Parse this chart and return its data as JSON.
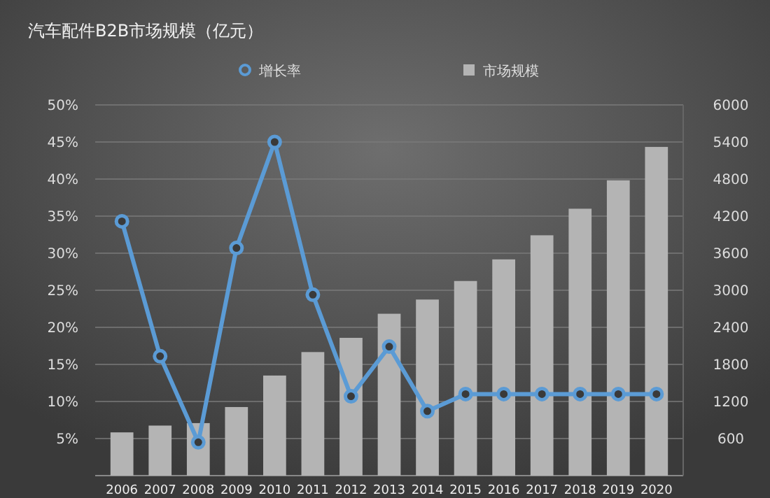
{
  "chart_data": {
    "type": "bar",
    "title": "汽车配件B2B市场规模（亿元）",
    "categories": [
      "2006",
      "2007",
      "2008",
      "2009",
      "2010",
      "2011",
      "2012",
      "2013",
      "2014",
      "2015",
      "2016",
      "2017",
      "2018",
      "2019",
      "2020"
    ],
    "series": [
      {
        "name": "增长率",
        "type": "line",
        "color": "#5b9bd5",
        "marker": "circle",
        "values": [
          34.3,
          16.1,
          4.5,
          30.7,
          45,
          24.4,
          10.7,
          17.4,
          8.7,
          11,
          11,
          11,
          11,
          11,
          11
        ]
      },
      {
        "name": "市场规模",
        "type": "bar",
        "axis": "y2",
        "color": "#b4b4b4",
        "values": [
          700,
          810,
          850,
          1110,
          1620,
          2000,
          2230,
          2620,
          2850,
          3150,
          3500,
          3890,
          4320,
          4780,
          5320
        ]
      }
    ],
    "ylim": [
      0,
      50
    ],
    "yticks": [
      {
        "value": 5,
        "label": "5%"
      },
      {
        "value": 10,
        "label": "10%"
      },
      {
        "value": 15,
        "label": "15%"
      },
      {
        "value": 20,
        "label": "20%"
      },
      {
        "value": 25,
        "label": "25%"
      },
      {
        "value": 30,
        "label": "30%"
      },
      {
        "value": 35,
        "label": "35%"
      },
      {
        "value": 40,
        "label": "40%"
      },
      {
        "value": 45,
        "label": "45%"
      },
      {
        "value": 50,
        "label": "50%"
      }
    ],
    "y2lim": [
      0,
      6000
    ],
    "y2ticks": [
      600,
      1200,
      1800,
      2400,
      3000,
      3600,
      4200,
      4800,
      5400,
      6000
    ],
    "grid": "y",
    "legend": "top"
  }
}
